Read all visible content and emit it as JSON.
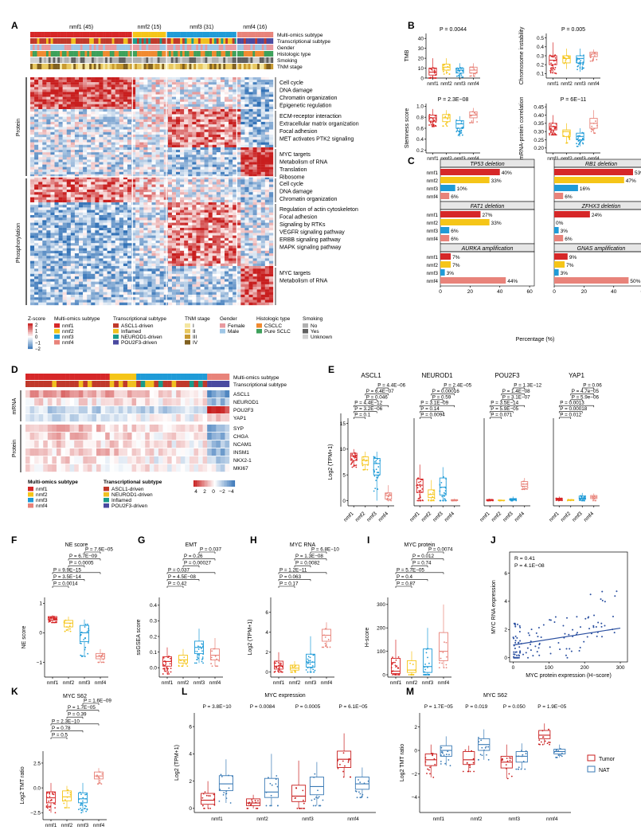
{
  "panel_letters": [
    "A",
    "B",
    "C",
    "D",
    "E",
    "F",
    "G",
    "H",
    "I",
    "J",
    "K",
    "L",
    "M"
  ],
  "groups": [
    "nmf1",
    "nmf2",
    "nmf3",
    "nmf4"
  ],
  "group_colors": [
    "#d62728",
    "#f5c518",
    "#1f9bd7",
    "#e8837a"
  ],
  "panelA": {
    "headers": [
      "nmf1 (45)",
      "nmf2 (15)",
      "nmf3 (31)",
      "nmf4 (16)"
    ],
    "tracks": [
      "Multi-omics subtype",
      "Transcriptional subtype",
      "Gender",
      "Histologic type",
      "Smoking",
      "TNM stage"
    ],
    "side_labels": [
      "Protein",
      "Phosphorylation"
    ],
    "pathway_blocks": [
      [
        "Cell cycle",
        "DNA damage",
        "Chromatin organization",
        "Epigenetic regulation"
      ],
      [
        "ECM-receptor interaction",
        "Extracellular matrix organization",
        "Focal adhesion",
        "MET activates PTK2 signaling"
      ],
      [
        "MYC targets",
        "Metabolism of RNA",
        "Translation",
        "Ribosome"
      ],
      [
        "Cell cycle",
        "DNA damage",
        "Chromatin organization"
      ],
      [
        "Regulation of actin cytoskeleton",
        "Focal adhesion",
        "Signaling by RTKs",
        "VEGFR signaling pathway",
        "ERBB signaling pathway",
        "MAPK signaling pathway"
      ],
      [
        "MYC targets",
        "Metabolism of RNA"
      ]
    ],
    "legend": {
      "zscore_title": "Z-score",
      "zscore_ticks": [
        "2",
        "1",
        "0",
        "−1",
        "−2"
      ],
      "multi_title": "Multi-omics subtype",
      "multi_items": [
        "nmf1",
        "nmf2",
        "nmf3",
        "nmf4"
      ],
      "trans_title": "Transcriptional subtype",
      "trans_items": [
        "ASCL1-driven",
        "Inflamed",
        "NEUROD1-driven",
        "POU2F3-driven"
      ],
      "tnm_title": "TNM stage",
      "tnm_items": [
        "I",
        "II",
        "III",
        "IV"
      ],
      "gender_title": "Gender",
      "gender_items": [
        "Female",
        "Male"
      ],
      "hist_title": "Histologic type",
      "hist_items": [
        "CSCLC",
        "Pure SCLC"
      ],
      "smoke_title": "Smoking",
      "smoke_items": [
        "No",
        "Yes",
        "Unknown"
      ]
    }
  },
  "panelB": [
    {
      "ylabel": "TMB",
      "p": "P = 0.0044",
      "ticks": [
        "0",
        "10",
        "20",
        "30",
        "40"
      ],
      "ylim": [
        0,
        45
      ],
      "groups": [
        {
          "med": 6,
          "q1": 3,
          "q3": 10,
          "lo": 0,
          "hi": 20
        },
        {
          "med": 11,
          "q1": 8,
          "q3": 14,
          "lo": 4,
          "hi": 20
        },
        {
          "med": 8,
          "q1": 5,
          "q3": 10,
          "lo": 1,
          "hi": 15
        },
        {
          "med": 8,
          "q1": 5,
          "q3": 11,
          "lo": 2,
          "hi": 15
        }
      ]
    },
    {
      "ylabel": "Chromosome instability",
      "p": "P = 0.005",
      "ticks": [
        "0.1",
        "0.2",
        "0.3",
        "0.4",
        "0.5"
      ],
      "ylim": [
        0.05,
        0.55
      ],
      "groups": [
        {
          "med": 0.25,
          "q1": 0.2,
          "q3": 0.3,
          "lo": 0.1,
          "hi": 0.45
        },
        {
          "med": 0.27,
          "q1": 0.22,
          "q3": 0.3,
          "lo": 0.15,
          "hi": 0.38
        },
        {
          "med": 0.27,
          "q1": 0.22,
          "q3": 0.3,
          "lo": 0.12,
          "hi": 0.38
        },
        {
          "med": 0.32,
          "q1": 0.29,
          "q3": 0.34,
          "lo": 0.24,
          "hi": 0.37
        }
      ]
    },
    {
      "ylabel": "Stemness score",
      "p": "P = 2.3E−08",
      "ticks": [
        "0.2",
        "0.4",
        "0.6",
        "0.8",
        "1.0"
      ],
      "ylim": [
        0.15,
        1.05
      ],
      "groups": [
        {
          "med": 0.79,
          "q1": 0.73,
          "q3": 0.84,
          "lo": 0.62,
          "hi": 0.95
        },
        {
          "med": 0.79,
          "q1": 0.72,
          "q3": 0.85,
          "lo": 0.64,
          "hi": 0.93
        },
        {
          "med": 0.68,
          "q1": 0.6,
          "q3": 0.74,
          "lo": 0.45,
          "hi": 0.82
        },
        {
          "med": 0.84,
          "q1": 0.79,
          "q3": 0.9,
          "lo": 0.7,
          "hi": 0.97
        }
      ]
    },
    {
      "ylabel": "mRNA-protein correlation",
      "p": "P = 6E−11",
      "ticks": [
        "0.20",
        "0.25",
        "0.30",
        "0.35",
        "0.40",
        "0.45"
      ],
      "ylim": [
        0.17,
        0.47
      ],
      "groups": [
        {
          "med": 0.33,
          "q1": 0.31,
          "q3": 0.35,
          "lo": 0.28,
          "hi": 0.4
        },
        {
          "med": 0.3,
          "q1": 0.27,
          "q3": 0.31,
          "lo": 0.23,
          "hi": 0.35
        },
        {
          "med": 0.27,
          "q1": 0.25,
          "q3": 0.29,
          "lo": 0.21,
          "hi": 0.32
        },
        {
          "med": 0.35,
          "q1": 0.32,
          "q3": 0.38,
          "lo": 0.29,
          "hi": 0.43
        }
      ]
    }
  ],
  "panelC": {
    "xlabel": "Percentage (%)",
    "ticks": [
      "0",
      "20",
      "40",
      "60"
    ],
    "blocks": [
      {
        "title": "TP53 deletion",
        "values": [
          40,
          33,
          10,
          6
        ],
        "labels": [
          "40%",
          "33%",
          "10%",
          "6%"
        ]
      },
      {
        "title": "RB1 deletion",
        "values": [
          53,
          47,
          16,
          6
        ],
        "labels": [
          "53%",
          "47%",
          "16%",
          "6%"
        ]
      },
      {
        "title": "FAT1 deletion",
        "values": [
          27,
          33,
          6,
          6
        ],
        "labels": [
          "27%",
          "33%",
          "6%",
          "6%"
        ]
      },
      {
        "title": "ZFHX3 deletion",
        "values": [
          24,
          0,
          3,
          6
        ],
        "labels": [
          "24%",
          "0%",
          "3%",
          "6%"
        ]
      },
      {
        "title": "AURKA amplification",
        "values": [
          7,
          7,
          3,
          44
        ],
        "labels": [
          "7%",
          "7%",
          "3%",
          "44%"
        ]
      },
      {
        "title": "GNAS amplification",
        "values": [
          9,
          7,
          3,
          50
        ],
        "labels": [
          "9%",
          "7%",
          "3%",
          "50%"
        ]
      }
    ]
  },
  "panelD": {
    "tracks": [
      "Multi-omics subtype",
      "Transcriptional subtype"
    ],
    "side": [
      "mRNA",
      "Protein"
    ],
    "genes": [
      "ASCL1",
      "NEUROD1",
      "POU2F3",
      "YAP1",
      "SYP",
      "CHGA",
      "NCAM1",
      "INSM1",
      "NKX2-1",
      "MKI67"
    ],
    "legend_multi_title": "Multi-omics subtype",
    "legend_multi": [
      "nmf1",
      "nmf2",
      "nmf3",
      "nmf4"
    ],
    "legend_trans_title": "Transcriptional subtype",
    "legend_trans": [
      "ASCL1-driven",
      "NEUROD1-driven",
      "Inflamed",
      "POU2F3-driven"
    ],
    "scale": [
      "4",
      "2",
      "0",
      "−2",
      "−4"
    ]
  },
  "panelE": {
    "ylabel": "Log2 (TPM+1)",
    "ticks": [
      "0",
      "5",
      "10",
      "15"
    ],
    "ylim": [
      -1,
      16
    ],
    "genes": [
      {
        "name": "ASCL1",
        "p": [
          "P = 0.1",
          "P = 3.2E−06",
          "P = 4.4E−12",
          "P = 0.046",
          "P = 6.4E−07",
          "P = 4.4E−06"
        ],
        "groups": [
          {
            "med": 8.7,
            "q1": 7.8,
            "q3": 9.2,
            "lo": 6.5,
            "hi": 10
          },
          {
            "med": 7.8,
            "q1": 7,
            "q3": 8.5,
            "lo": 6,
            "hi": 9.5
          },
          {
            "med": 7.2,
            "q1": 5,
            "q3": 8.2,
            "lo": 0,
            "hi": 9.5
          },
          {
            "med": 1,
            "q1": 0.3,
            "q3": 1.5,
            "lo": 0,
            "hi": 3
          }
        ]
      },
      {
        "name": "NEUROD1",
        "p": [
          "P = 0.0094",
          "P = 0.14",
          "P = 3.1E−09",
          "P = 0.59",
          "P = 0.00016",
          "P = 2.4E−05"
        ],
        "groups": [
          {
            "med": 3,
            "q1": 1.6,
            "q3": 4.2,
            "lo": 0,
            "hi": 7
          },
          {
            "med": 1.2,
            "q1": 0.6,
            "q3": 2.1,
            "lo": 0,
            "hi": 4
          },
          {
            "med": 2.6,
            "q1": 1.1,
            "q3": 4.4,
            "lo": 0,
            "hi": 6.5
          },
          {
            "med": 0.1,
            "q1": 0,
            "q3": 0.2,
            "lo": 0,
            "hi": 0.4
          }
        ]
      },
      {
        "name": "POU2F3",
        "p": [
          "P = 0.071",
          "P = 5.9E−05",
          "P = 3.5E−14",
          "P = 3.1E−07",
          "P = 1.4E−08",
          "P = 1.3E−12"
        ],
        "groups": [
          {
            "med": 0.1,
            "q1": 0.05,
            "q3": 0.2,
            "lo": 0,
            "hi": 0.4
          },
          {
            "med": 0.05,
            "q1": 0,
            "q3": 0.1,
            "lo": 0,
            "hi": 0.2
          },
          {
            "med": 0.2,
            "q1": 0.1,
            "q3": 0.4,
            "lo": 0,
            "hi": 0.8
          },
          {
            "med": 3.2,
            "q1": 2.8,
            "q3": 3.7,
            "lo": 2.2,
            "hi": 4.4
          }
        ]
      },
      {
        "name": "YAP1",
        "p": [
          "P = 0.012",
          "P = 0.00018",
          "P = 0.0013",
          "P = 5.9e−06",
          "P = 4.7e−05",
          "P = 0.06"
        ],
        "groups": [
          {
            "med": 0.3,
            "q1": 0.2,
            "q3": 0.45,
            "lo": 0,
            "hi": 0.8
          },
          {
            "med": 0.1,
            "q1": 0.05,
            "q3": 0.2,
            "lo": 0,
            "hi": 0.3
          },
          {
            "med": 0.5,
            "q1": 0.3,
            "q3": 0.9,
            "lo": 0,
            "hi": 1.5
          },
          {
            "med": 0.7,
            "q1": 0.4,
            "q3": 1,
            "lo": 0,
            "hi": 1.4
          }
        ]
      }
    ]
  },
  "panelF": {
    "title": "NE score",
    "ylabel": "NE score",
    "ticks": [
      "−1",
      "0",
      "1"
    ],
    "ylim": [
      -1.5,
      1.2
    ],
    "p": [
      "P = 0.0014",
      "P = 3.5E−14",
      "P = 9.9E−15",
      "P = 0.0005",
      "P = 6.7E−09",
      "P = 7.6E−05"
    ],
    "groups": [
      {
        "med": 0.5,
        "q1": 0.43,
        "q3": 0.55,
        "lo": 0.35,
        "hi": 0.6
      },
      {
        "med": 0.33,
        "q1": 0.2,
        "q3": 0.42,
        "lo": 0.05,
        "hi": 0.55
      },
      {
        "med": 0,
        "q1": -0.3,
        "q3": 0.25,
        "lo": -0.8,
        "hi": 0.45
      },
      {
        "med": -0.8,
        "q1": -0.88,
        "q3": -0.7,
        "lo": -1.0,
        "hi": -0.55
      }
    ]
  },
  "panelG": {
    "title": "EMT",
    "ylabel": "ssGSEA score",
    "ticks": [
      "0.0",
      "0.1",
      "0.2",
      "0.3",
      "0.4"
    ],
    "ylim": [
      -0.06,
      0.45
    ],
    "p": [
      "P = 0.42",
      "P = 4.5E−08",
      "P = 0.037",
      "P = 0.00027",
      "P = 0.26",
      "P = 0.037"
    ],
    "groups": [
      {
        "med": 0.04,
        "q1": 0.01,
        "q3": 0.07,
        "lo": -0.04,
        "hi": 0.13
      },
      {
        "med": 0.05,
        "q1": 0.03,
        "q3": 0.08,
        "lo": 0.01,
        "hi": 0.12
      },
      {
        "med": 0.13,
        "q1": 0.09,
        "q3": 0.17,
        "lo": 0.03,
        "hi": 0.25
      },
      {
        "med": 0.08,
        "q1": 0.05,
        "q3": 0.12,
        "lo": 0.01,
        "hi": 0.19
      }
    ]
  },
  "panelH": {
    "title": "MYC RNA",
    "ylabel": "Log2 (TPM+1)",
    "ticks": [
      "0",
      "2",
      "4",
      "6"
    ],
    "ylim": [
      -0.5,
      7.5
    ],
    "p": [
      "P = 0.17",
      "P = 0.063",
      "P = 1.2E−11",
      "P = 0.0082",
      "P = 1.3E−08",
      "P = 6.8E−10"
    ],
    "groups": [
      {
        "med": 0.6,
        "q1": 0.3,
        "q3": 1.1,
        "lo": 0,
        "hi": 2
      },
      {
        "med": 0.4,
        "q1": 0.2,
        "q3": 0.7,
        "lo": 0,
        "hi": 1.1
      },
      {
        "med": 1,
        "q1": 0.5,
        "q3": 1.8,
        "lo": 0,
        "hi": 3.6
      },
      {
        "med": 3.7,
        "q1": 3.1,
        "q3": 4.3,
        "lo": 2.5,
        "hi": 5
      }
    ]
  },
  "panelI": {
    "title": "MYC protein",
    "ylabel": "H-score",
    "ticks": [
      "0",
      "100",
      "200",
      "300"
    ],
    "ylim": [
      -10,
      330
    ],
    "p": [
      "P = 0.87",
      "P = 0.4",
      "P = 5.7E−05",
      "P = 0.74",
      "P = 0.012",
      "P = 0.0074"
    ],
    "groups": [
      {
        "med": 15,
        "q1": 5,
        "q3": 70,
        "lo": 0,
        "hi": 150
      },
      {
        "med": 20,
        "q1": 10,
        "q3": 60,
        "lo": 0,
        "hi": 100
      },
      {
        "med": 35,
        "q1": 10,
        "q3": 110,
        "lo": 0,
        "hi": 200
      },
      {
        "med": 100,
        "q1": 60,
        "q3": 180,
        "lo": 30,
        "hi": 300
      }
    ]
  },
  "panelJ": {
    "xlabel": "MYC protein expression (H−score)",
    "ylabel": "MYC RNA expression",
    "stats": [
      "R = 0.41",
      "P = 4.1E−08"
    ],
    "xticks": [
      "0",
      "100",
      "200",
      "300"
    ],
    "yticks": [
      "0",
      "2",
      "4",
      "6"
    ],
    "xlim": [
      -10,
      320
    ],
    "ylim": [
      -0.3,
      7.5
    ],
    "fit": [
      [
        0,
        0.9
      ],
      [
        300,
        2.1
      ]
    ]
  },
  "panelK": {
    "title": "MYC S62",
    "ylabel": "Log2 TMT ratio",
    "ticks": [
      "−2.5",
      "0.0",
      "2.5"
    ],
    "ylim": [
      -3.2,
      3.7
    ],
    "p": [
      "P = 0.5",
      "P = 0.78",
      "P = 2.3E−10",
      "P = 0.39",
      "P = 1.7E−05",
      "P = 1.6E−09"
    ],
    "groups": [
      {
        "med": -1,
        "q1": -1.5,
        "q3": -0.4,
        "lo": -2.5,
        "hi": 0.5
      },
      {
        "med": -0.9,
        "q1": -1.3,
        "q3": -0.3,
        "lo": -2,
        "hi": 0.2
      },
      {
        "med": -1.1,
        "q1": -1.5,
        "q3": -0.5,
        "lo": -2.5,
        "hi": 0.5
      },
      {
        "med": 1.2,
        "q1": 0.9,
        "q3": 1.6,
        "lo": 0.4,
        "hi": 2
      }
    ]
  },
  "panelL": {
    "title": "MYC expression",
    "ylabel": "Log2 (TPM+1)",
    "ticks": [
      "0",
      "2",
      "4",
      "6"
    ],
    "ylim": [
      -0.3,
      7
    ],
    "p": [
      "P = 3.8E−10",
      "P = 0.0084",
      "P = 0.0005",
      "P = 6.1E−05"
    ],
    "tumor": [
      {
        "med": 0.6,
        "q1": 0.3,
        "q3": 1.1,
        "lo": 0,
        "hi": 2
      },
      {
        "med": 0.4,
        "q1": 0.2,
        "q3": 0.7,
        "lo": 0,
        "hi": 1
      },
      {
        "med": 0.9,
        "q1": 0.5,
        "q3": 1.7,
        "lo": 0,
        "hi": 3.5
      },
      {
        "med": 3.6,
        "q1": 3,
        "q3": 4.2,
        "lo": 2.3,
        "hi": 5.5
      }
    ],
    "nat": [
      {
        "med": 1.8,
        "q1": 1.3,
        "q3": 2.4,
        "lo": 0.4,
        "hi": 3.6
      },
      {
        "med": 1.2,
        "q1": 0.8,
        "q3": 2.2,
        "lo": 0.2,
        "hi": 4
      },
      {
        "med": 1.6,
        "q1": 1,
        "q3": 2.3,
        "lo": 0.2,
        "hi": 3.4
      },
      {
        "med": 1.8,
        "q1": 1.4,
        "q3": 2.3,
        "lo": 0.8,
        "hi": 3
      }
    ]
  },
  "panelM": {
    "title": "MYC S62",
    "ylabel": "Log2 TMT ratio",
    "ticks": [
      "−4",
      "−2",
      "0",
      "2"
    ],
    "ylim": [
      -5.3,
      3.2
    ],
    "p": [
      "P = 1.7E−05",
      "P = 0.019",
      "P = 0.050",
      "P = 1.9E−05"
    ],
    "tumor": [
      {
        "med": -0.8,
        "q1": -1.3,
        "q3": -0.3,
        "lo": -2.3,
        "hi": 0.5
      },
      {
        "med": -0.8,
        "q1": -1.2,
        "q3": -0.1,
        "lo": -1.8,
        "hi": 0.4
      },
      {
        "med": -1,
        "q1": -1.5,
        "q3": -0.5,
        "lo": -2.4,
        "hi": 0.5
      },
      {
        "med": 1.3,
        "q1": 1,
        "q3": 1.7,
        "lo": 0.5,
        "hi": 2.3
      }
    ],
    "nat": [
      {
        "med": 0,
        "q1": -0.5,
        "q3": 0.4,
        "lo": -1.3,
        "hi": 1.2
      },
      {
        "med": 0.5,
        "q1": 0,
        "q3": 1,
        "lo": -0.8,
        "hi": 1.8
      },
      {
        "med": -0.5,
        "q1": -1,
        "q3": -0.1,
        "lo": -1.6,
        "hi": 0.6
      },
      {
        "med": -0.1,
        "q1": -0.3,
        "q3": 0.1,
        "lo": -0.6,
        "hi": 0.5
      }
    ],
    "legend": [
      "Tumor",
      "NAT"
    ]
  },
  "colors": {
    "tumor": "#c81e1e",
    "nat": "#3a7ab5",
    "heat_hi": "#c81e1e",
    "heat_lo": "#2e6fb5"
  }
}
